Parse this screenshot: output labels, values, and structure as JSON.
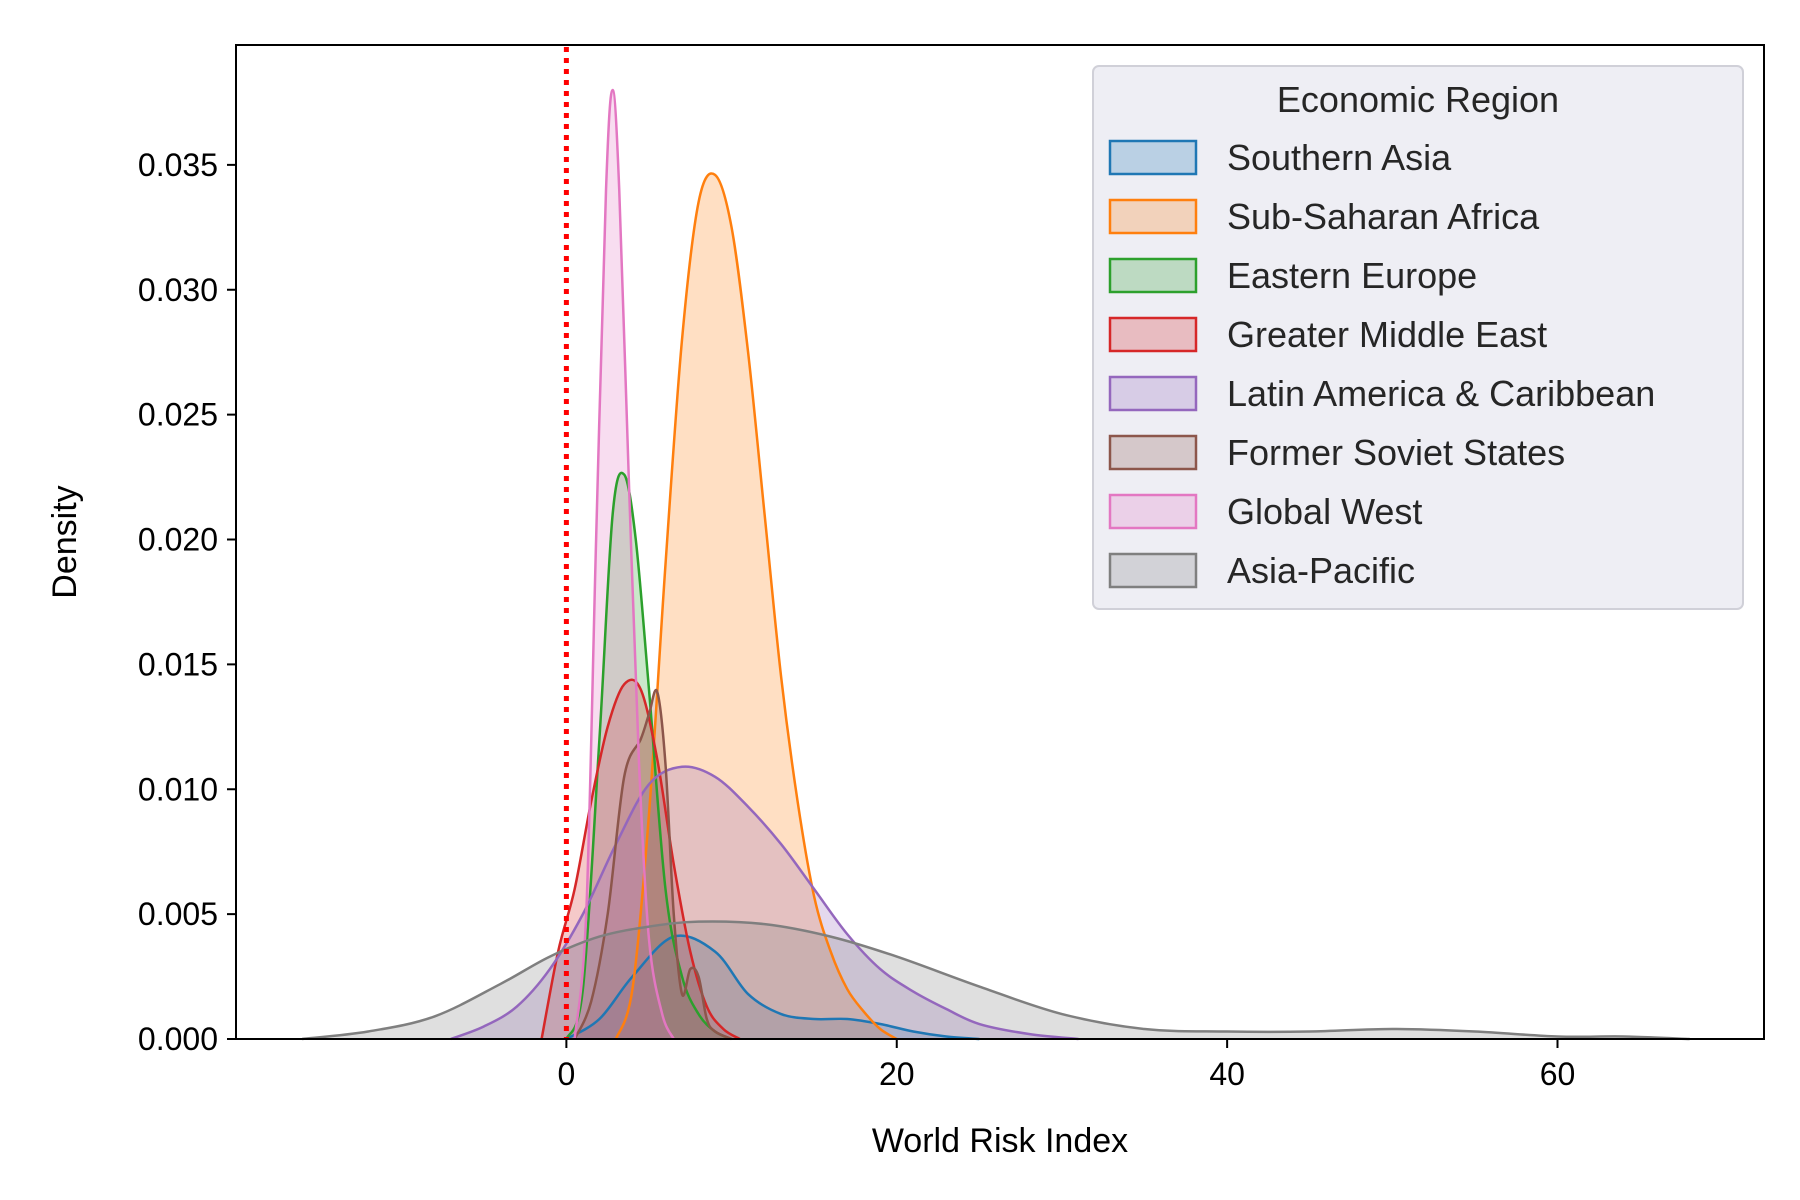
{
  "chart_data": {
    "type": "area",
    "title": "",
    "xlabel": "World Risk Index",
    "ylabel": "Density",
    "xlim": [
      -20,
      72.5
    ],
    "ylim": [
      0,
      0.0398
    ],
    "xticks": [
      0,
      20,
      40,
      60
    ],
    "xtick_labels": [
      "0",
      "20",
      "40",
      "60"
    ],
    "yticks": [
      0,
      0.005,
      0.01,
      0.015,
      0.02,
      0.025,
      0.03,
      0.035
    ],
    "ytick_labels": [
      "0.000",
      "0.005",
      "0.010",
      "0.015",
      "0.020",
      "0.025",
      "0.030",
      "0.035"
    ],
    "grid": false,
    "legend": {
      "title": "Economic Region",
      "placement": "top-right"
    },
    "reference_line": {
      "x": 0,
      "color": "#ff0000",
      "style": "dotted"
    },
    "series": [
      {
        "name": "Southern Asia",
        "color": "#1f77b4",
        "x": [
          0,
          2,
          4,
          6.5,
          9,
          11,
          13,
          15,
          17,
          19,
          21,
          23,
          25
        ],
        "y": [
          0,
          0.0008,
          0.0025,
          0.0041,
          0.0035,
          0.0018,
          0.001,
          0.0008,
          0.0008,
          0.0006,
          0.0003,
          0.0001,
          0
        ]
      },
      {
        "name": "Sub-Saharan Africa",
        "color": "#ff7f0e",
        "x": [
          3,
          4,
          5,
          6,
          7,
          8,
          9,
          10,
          11,
          12,
          13,
          14,
          15,
          16,
          17,
          18,
          19,
          20
        ],
        "y": [
          0,
          0.002,
          0.009,
          0.019,
          0.028,
          0.0335,
          0.0346,
          0.0325,
          0.0275,
          0.021,
          0.0145,
          0.0095,
          0.0057,
          0.0035,
          0.002,
          0.0011,
          0.0004,
          0
        ]
      },
      {
        "name": "Eastern Europe",
        "color": "#2ca02c",
        "x": [
          0,
          1,
          2,
          2.8,
          3.5,
          4.2,
          5,
          6,
          7,
          8,
          9,
          10
        ],
        "y": [
          0,
          0.002,
          0.012,
          0.021,
          0.0226,
          0.02,
          0.014,
          0.006,
          0.0025,
          0.001,
          0.0003,
          0
        ]
      },
      {
        "name": "Greater Middle East",
        "color": "#d62728",
        "x": [
          -1.5,
          -0.5,
          0.5,
          1.5,
          2.5,
          3.5,
          4.5,
          5.5,
          6.5,
          7.5,
          8.5,
          9.5,
          10.5
        ],
        "y": [
          0,
          0.0035,
          0.006,
          0.0095,
          0.0125,
          0.0142,
          0.014,
          0.0112,
          0.007,
          0.0035,
          0.0013,
          0.0004,
          0
        ]
      },
      {
        "name": "Latin America & Caribbean",
        "color": "#9467bd",
        "x": [
          -7,
          -5,
          -3,
          -1,
          1,
          3,
          5,
          7,
          9,
          11,
          13,
          15,
          17,
          19,
          21,
          23,
          25,
          28,
          31
        ],
        "y": [
          0,
          0.0005,
          0.0013,
          0.0028,
          0.005,
          0.0078,
          0.0102,
          0.0109,
          0.0105,
          0.0093,
          0.0078,
          0.006,
          0.0042,
          0.0028,
          0.0019,
          0.0012,
          0.0006,
          0.0002,
          0
        ]
      },
      {
        "name": "Former Soviet States",
        "color": "#8c564b",
        "x": [
          0.5,
          1.5,
          2.5,
          3.5,
          4.5,
          5,
          5.5,
          6,
          6.5,
          7,
          7.5,
          8,
          8.5,
          9,
          10
        ],
        "y": [
          0,
          0.0015,
          0.005,
          0.0105,
          0.012,
          0.013,
          0.0139,
          0.011,
          0.005,
          0.0018,
          0.0028,
          0.0025,
          0.0008,
          0.0003,
          0
        ]
      },
      {
        "name": "Global West",
        "color": "#e377c2",
        "x": [
          0.5,
          1.2,
          1.8,
          2.4,
          2.8,
          3.2,
          3.8,
          4.4,
          5,
          5.8,
          6.5
        ],
        "y": [
          0,
          0.005,
          0.02,
          0.034,
          0.038,
          0.034,
          0.022,
          0.011,
          0.004,
          0.001,
          0
        ]
      },
      {
        "name": "Asia-Pacific",
        "color": "#7f7f7f",
        "x": [
          -16,
          -12,
          -8,
          -4,
          -1,
          2,
          5,
          8,
          12,
          16,
          20,
          25,
          30,
          35,
          40,
          45,
          50,
          55,
          60,
          64,
          68
        ],
        "y": [
          0,
          0.0003,
          0.0009,
          0.0022,
          0.0033,
          0.0041,
          0.0045,
          0.0047,
          0.0046,
          0.0041,
          0.0033,
          0.0021,
          0.001,
          0.0004,
          0.0003,
          0.0003,
          0.0004,
          0.0003,
          0.0001,
          0.0001,
          0
        ]
      }
    ]
  }
}
